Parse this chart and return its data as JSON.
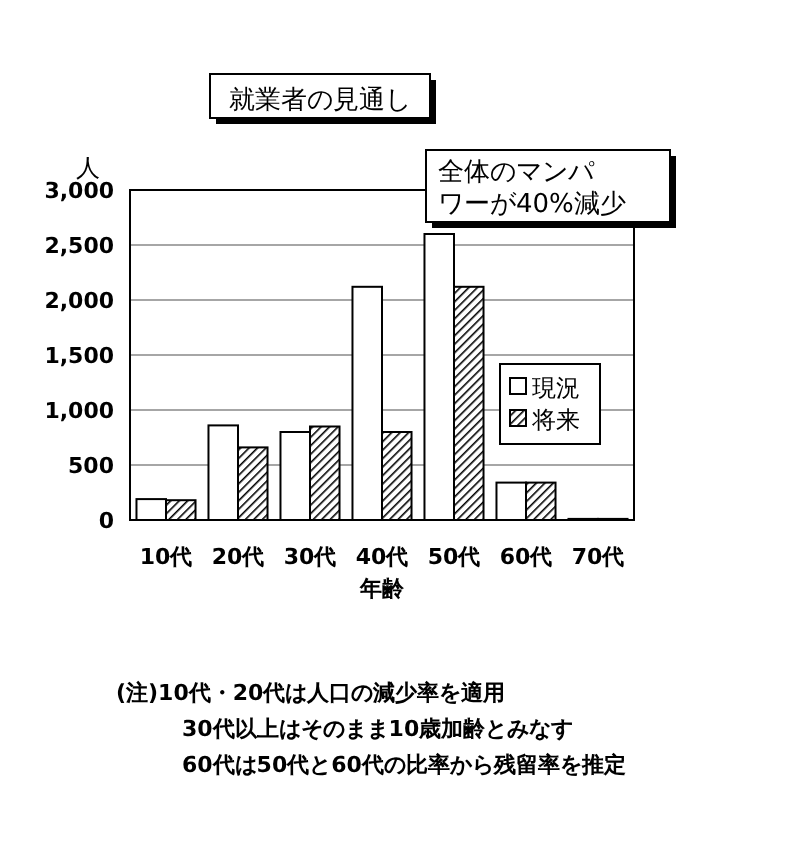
{
  "chart_data": {
    "type": "bar",
    "title": "就業者の見通し",
    "xlabel": "年齢",
    "ylabel": "人",
    "categories": [
      "10代",
      "20代",
      "30代",
      "40代",
      "50代",
      "60代",
      "70代"
    ],
    "series": [
      {
        "name": "現況",
        "color": "#ffffff",
        "values": [
          190,
          860,
          800,
          2120,
          2600,
          340,
          10
        ]
      },
      {
        "name": "将来",
        "color": "#000000",
        "values": [
          180,
          660,
          850,
          800,
          2120,
          340,
          10
        ]
      }
    ],
    "ylim": [
      0,
      3000
    ],
    "yticks": [
      {
        "value": 0,
        "label": "0"
      },
      {
        "value": 500,
        "label": "500"
      },
      {
        "value": 1000,
        "label": "1,000"
      },
      {
        "value": 1500,
        "label": "1,500"
      },
      {
        "value": 2000,
        "label": "2,000"
      },
      {
        "value": 2500,
        "label": "2,500"
      },
      {
        "value": 3000,
        "label": "3,000"
      }
    ],
    "grid": "y",
    "legend": "right",
    "annotations": [
      "全体のマンパワーが40%減少",
      "(注)10代・20代は人口の減少率を適用",
      "30代以上はそのまま10歳加齢とみなす",
      "60代は50代と60代の比率から残留率を推定"
    ]
  }
}
